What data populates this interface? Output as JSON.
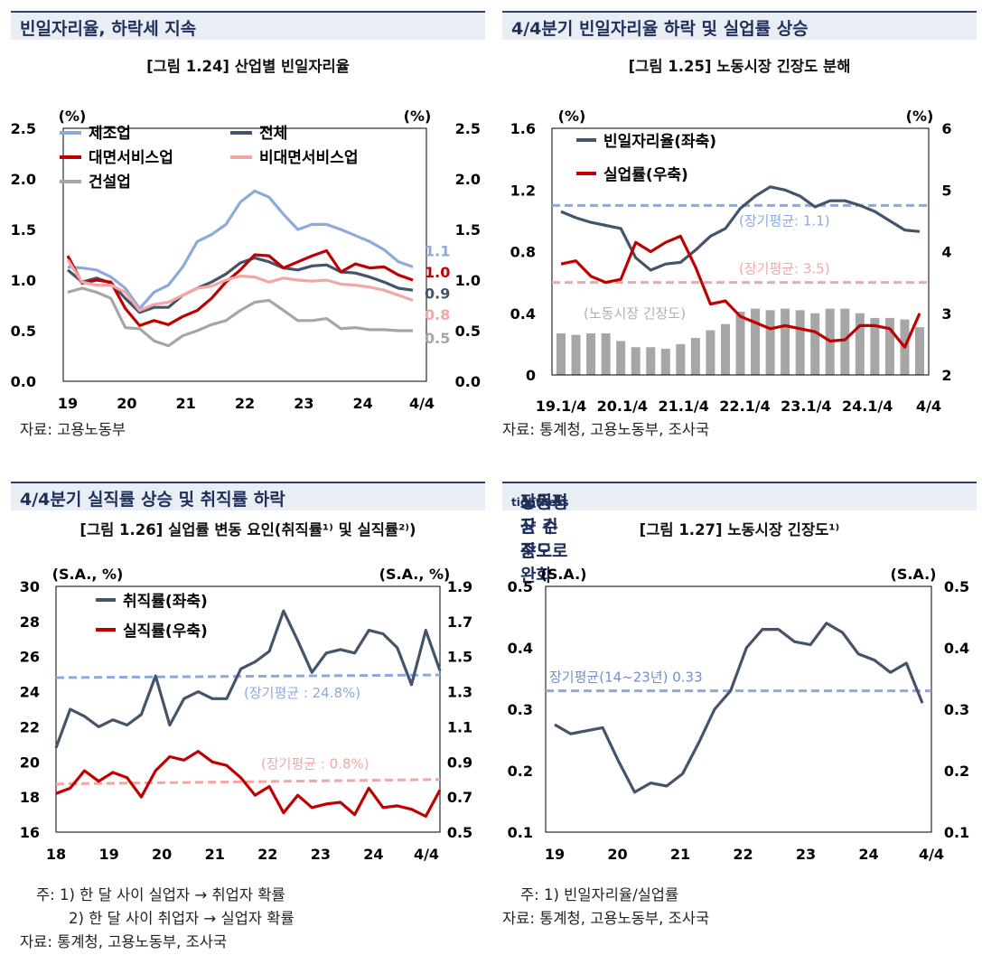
{
  "panels": [
    {
      "header": "빈일자리율, 하락세 지속",
      "subtitle": "[그림 1.24] 산업별 빈일자리율",
      "source": "자료: 고용노동부"
    },
    {
      "header": "4/4분기 빈일자리율 하락 및 실업률 상승",
      "subtitle": "[그림 1.25] 노동시장 긴장도 분해",
      "source": "자료: 통계청, 고용노동부, 조사국"
    },
    {
      "header": "4/4분기 실직률 상승 및 취직률 하락",
      "subtitle": "[그림 1.26] 실업률 변동 요인(취직률¹⁾ 및 실직률²⁾)",
      "note1": "주: 1) 한 달 사이 실업자 → 취업자 확률",
      "note2": "2) 한 달 사이 취업자 → 실업자 확률",
      "source": "자료: 통계청, 고용노동부, 조사국"
    },
    {
      "header": "노동시장 긴장도tightness 장기평균 수준으로 완화",
      "header_main": "노동시장 긴장도",
      "header_sub": "tightness",
      "header_tail": " 장기평균 수준으로 완화",
      "subtitle": "[그림 1.27] 노동시장 긴장도¹⁾",
      "note1": "주: 1) 빈일자리율/실업률",
      "source": "자료: 통계청, 고용노동부, 조사국"
    }
  ],
  "chart_data": [
    {
      "type": "line",
      "title": "[그림 1.24] 산업별 빈일자리율",
      "unit_left": "(%)",
      "unit_right": "(%)",
      "ylim": [
        0,
        2.5
      ],
      "yticks": [
        "0.0",
        "0.5",
        "1.0",
        "1.5",
        "2.0",
        "2.5"
      ],
      "xticks": [
        "19",
        "20",
        "21",
        "22",
        "23",
        "24",
        "4/4"
      ],
      "end_labels": [
        "1.1",
        "1.0",
        "0.9",
        "0.8",
        "0.5"
      ],
      "series": [
        {
          "name": "제조업",
          "color": "#8eaadb",
          "values": [
            1.13,
            1.12,
            1.1,
            1.03,
            0.92,
            0.72,
            0.88,
            0.95,
            1.13,
            1.38,
            1.45,
            1.55,
            1.77,
            1.88,
            1.82,
            1.65,
            1.5,
            1.55,
            1.55,
            1.5,
            1.44,
            1.38,
            1.3,
            1.18,
            1.13
          ]
        },
        {
          "name": "전체",
          "color": "#44546a",
          "values": [
            1.1,
            0.98,
            1.02,
            0.97,
            0.82,
            0.68,
            0.73,
            0.73,
            0.85,
            0.92,
            0.98,
            1.06,
            1.17,
            1.22,
            1.18,
            1.12,
            1.1,
            1.14,
            1.15,
            1.08,
            1.07,
            1.03,
            0.98,
            0.92,
            0.9
          ]
        },
        {
          "name": "대면서비스업",
          "color": "#c00000",
          "values": [
            1.24,
            0.97,
            1.0,
            0.98,
            0.72,
            0.55,
            0.6,
            0.56,
            0.64,
            0.7,
            0.82,
            0.98,
            1.1,
            1.25,
            1.24,
            1.12,
            1.18,
            1.24,
            1.29,
            1.08,
            1.16,
            1.12,
            1.13,
            1.05,
            1.0
          ]
        },
        {
          "name": "비대면서비스업",
          "color": "#f4a6a6",
          "values": [
            1.2,
            0.98,
            0.95,
            0.95,
            0.88,
            0.7,
            0.76,
            0.78,
            0.85,
            0.92,
            0.94,
            1.0,
            1.04,
            1.03,
            0.98,
            1.02,
            1.0,
            0.99,
            1.0,
            0.96,
            0.95,
            0.93,
            0.9,
            0.85,
            0.8
          ]
        },
        {
          "name": "건설업",
          "color": "#a6a6a6",
          "values": [
            0.88,
            0.92,
            0.88,
            0.82,
            0.53,
            0.52,
            0.4,
            0.35,
            0.45,
            0.5,
            0.56,
            0.6,
            0.7,
            0.78,
            0.8,
            0.7,
            0.6,
            0.6,
            0.62,
            0.52,
            0.53,
            0.51,
            0.51,
            0.5,
            0.5
          ]
        }
      ]
    },
    {
      "type": "line",
      "title": "[그림 1.25] 노동시장 긴장도 분해",
      "unit_left": "(%)",
      "unit_right": "(%)",
      "ylim_left": [
        0,
        1.6
      ],
      "ylim_right": [
        2,
        6
      ],
      "yticks_left": [
        "0",
        "0.4",
        "0.8",
        "1.2",
        "1.6"
      ],
      "yticks_right": [
        "2",
        "3",
        "4",
        "5",
        "6"
      ],
      "xticks": [
        "19.1/4",
        "20.1/4",
        "21.1/4",
        "22.1/4",
        "23.1/4",
        "24.1/4",
        "4/4"
      ],
      "series": [
        {
          "name": "빈일자리율(좌축)",
          "axis": "left",
          "color": "#44546a",
          "values": [
            1.06,
            1.02,
            0.99,
            0.97,
            0.95,
            0.76,
            0.68,
            0.72,
            0.73,
            0.81,
            0.9,
            0.95,
            1.08,
            1.16,
            1.22,
            1.2,
            1.16,
            1.09,
            1.13,
            1.13,
            1.1,
            1.06,
            1.0,
            0.94,
            0.93
          ]
        },
        {
          "name": "실업률(우축)",
          "axis": "right",
          "color": "#c00000",
          "values": [
            3.8,
            3.85,
            3.6,
            3.5,
            3.55,
            4.15,
            4.0,
            4.15,
            4.25,
            3.75,
            3.15,
            3.2,
            2.95,
            2.85,
            2.75,
            2.8,
            2.75,
            2.7,
            2.55,
            2.57,
            2.8,
            2.8,
            2.75,
            2.45,
            3.0
          ]
        },
        {
          "name": "노동시장 긴장도",
          "type": "bar",
          "axis": "left",
          "color": "#a6a6a6",
          "values": [
            0.27,
            0.26,
            0.27,
            0.27,
            0.22,
            0.18,
            0.18,
            0.17,
            0.2,
            0.24,
            0.29,
            0.33,
            0.41,
            0.43,
            0.42,
            0.43,
            0.42,
            0.4,
            0.43,
            0.43,
            0.4,
            0.37,
            0.37,
            0.36,
            0.31
          ]
        }
      ],
      "annotations": [
        "(장기평균: 1.1)",
        "(장기평균: 3.5)",
        "(노동시장 긴장도)"
      ],
      "reference_lines": [
        {
          "axis": "left",
          "value": 1.1,
          "color": "#8eaadb"
        },
        {
          "axis": "right",
          "value": 3.5,
          "color": "#f4a6a6"
        }
      ]
    },
    {
      "type": "line",
      "title": "[그림 1.26] 실업률 변동 요인(취직률 및 실직률)",
      "unit_left": "(S.A., %)",
      "unit_right": "(S.A., %)",
      "ylim_left": [
        16,
        30
      ],
      "ylim_right": [
        0.5,
        1.9
      ],
      "yticks_left": [
        "16",
        "18",
        "20",
        "22",
        "24",
        "26",
        "28",
        "30"
      ],
      "yticks_right": [
        "0.5",
        "0.7",
        "0.9",
        "1.1",
        "1.3",
        "1.5",
        "1.7",
        "1.9"
      ],
      "xticks": [
        "18",
        "19",
        "20",
        "21",
        "22",
        "23",
        "24",
        "4/4"
      ],
      "series": [
        {
          "name": "취직률(좌축)",
          "axis": "left",
          "color": "#44546a",
          "values": [
            20.8,
            23.0,
            22.6,
            22.0,
            22.4,
            22.1,
            22.7,
            24.9,
            22.1,
            23.6,
            24.0,
            23.6,
            23.6,
            25.3,
            25.7,
            26.3,
            28.6,
            26.9,
            25.1,
            26.2,
            26.4,
            26.2,
            27.5,
            27.3,
            26.5,
            24.4,
            27.5,
            25.2
          ]
        },
        {
          "name": "실직률(우축)",
          "axis": "right",
          "color": "#c00000",
          "values": [
            0.72,
            0.75,
            0.85,
            0.79,
            0.84,
            0.81,
            0.7,
            0.85,
            0.93,
            0.91,
            0.96,
            0.9,
            0.88,
            0.81,
            0.71,
            0.76,
            0.61,
            0.71,
            0.64,
            0.66,
            0.67,
            0.6,
            0.75,
            0.64,
            0.65,
            0.63,
            0.59,
            0.74
          ]
        }
      ],
      "annotations": [
        "(장기평균 : 24.8%)",
        "(장기평균 : 0.8%)"
      ],
      "reference_lines": [
        {
          "axis": "left",
          "value": 24.8,
          "color": "#8eaadb"
        },
        {
          "axis": "right",
          "value": 0.8,
          "color": "#f4a6a6"
        }
      ]
    },
    {
      "type": "line",
      "title": "[그림 1.27] 노동시장 긴장도",
      "unit_left": "(S.A.)",
      "unit_right": "(S.A.)",
      "ylim": [
        0.1,
        0.5
      ],
      "yticks": [
        "0.1",
        "0.2",
        "0.3",
        "0.4",
        "0.5"
      ],
      "xticks": [
        "19",
        "20",
        "21",
        "22",
        "23",
        "24",
        "4/4"
      ],
      "series": [
        {
          "name": "노동시장 긴장도",
          "color": "#44546a",
          "values": [
            0.275,
            0.26,
            0.265,
            0.27,
            0.215,
            0.165,
            0.18,
            0.175,
            0.195,
            0.245,
            0.3,
            0.33,
            0.4,
            0.43,
            0.43,
            0.41,
            0.405,
            0.44,
            0.425,
            0.39,
            0.38,
            0.36,
            0.375,
            0.31
          ]
        }
      ],
      "annotations": [
        "장기평균(14~23년) 0.33"
      ],
      "reference_lines": [
        {
          "value": 0.33,
          "color": "#8eaadb"
        }
      ]
    }
  ]
}
